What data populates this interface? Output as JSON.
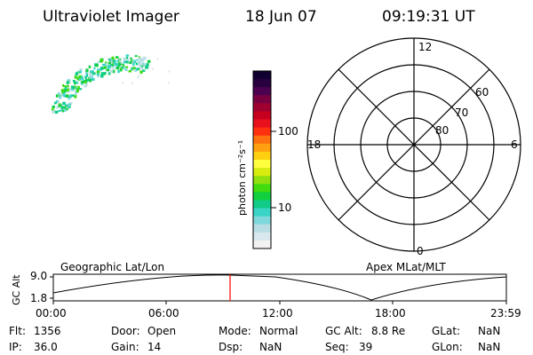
{
  "header": {
    "title": "Ultraviolet Imager",
    "date": "18 Jun 07",
    "time": "09:19:31 UT"
  },
  "colorbar": {
    "unit_label": "photon cm⁻²s⁻¹",
    "ticks": [
      {
        "label": "100",
        "value": 100
      },
      {
        "label": "10",
        "value": 10
      }
    ],
    "colors": [
      "#f2f2f2",
      "#d8e8ec",
      "#b9dde4",
      "#7fd9dc",
      "#38d4c6",
      "#10cc88",
      "#10d040",
      "#40dc10",
      "#90e010",
      "#d8ec10",
      "#ffff40",
      "#ffd010",
      "#ffa010",
      "#ff7010",
      "#ff3010",
      "#e8101c",
      "#c80020",
      "#a00030",
      "#780040",
      "#4c0050",
      "#280040",
      "#100030"
    ]
  },
  "polar": {
    "mlt_labels": {
      "top": "12",
      "left": "18",
      "right": "6",
      "bottom": "0"
    },
    "lat_labels": [
      "60",
      "70",
      "80"
    ]
  },
  "strip": {
    "left_title": "Geographic Lat/Lon",
    "right_title": "Apex MLat/MLT",
    "ylabel": "GC Alt",
    "yticks": [
      "9.0",
      "1.8"
    ],
    "xticks": [
      "00:00",
      "06:00",
      "12:00",
      "18:00",
      "23:59"
    ],
    "current_time_marker": "09:19",
    "marker_color": "#ff0000"
  },
  "info": {
    "col1": [
      {
        "label": "Flt:",
        "value": "1356"
      },
      {
        "label": "IP:",
        "value": "36.0"
      }
    ],
    "col2": [
      {
        "label": "Door:",
        "value": "Open"
      },
      {
        "label": "Gain:",
        "value": "14"
      }
    ],
    "col3": [
      {
        "label": "Mode:",
        "value": "Normal"
      },
      {
        "label": "Dsp:",
        "value": "NaN"
      }
    ],
    "col4": [
      {
        "label": "GC Alt:",
        "value": "8.8 Re"
      },
      {
        "label": "Seq:",
        "value": "39"
      }
    ],
    "col5": [
      {
        "label": "GLat:",
        "value": "NaN"
      },
      {
        "label": "GLon:",
        "value": "NaN"
      }
    ]
  }
}
